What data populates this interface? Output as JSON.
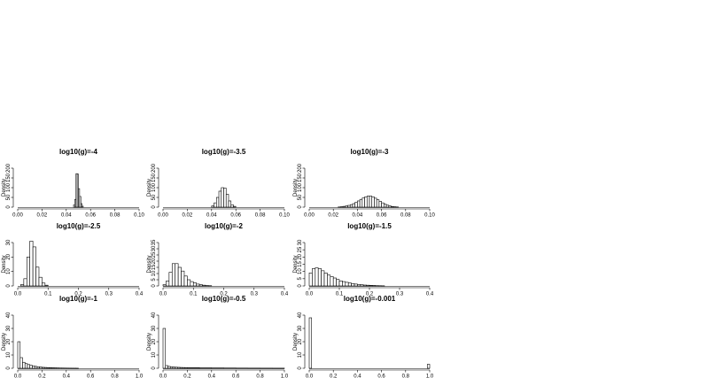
{
  "chart_data": [
    {
      "type": "bar",
      "title": "log10(g)=-4",
      "ylabel": "Density",
      "xlabel": "",
      "xlim": [
        0,
        0.1
      ],
      "ylim": [
        0,
        200
      ],
      "xticks": [
        "0.00",
        "0.02",
        "0.04",
        "0.06",
        "0.08",
        "0.10"
      ],
      "yticks": [
        "0",
        "50",
        "100",
        "150",
        "200"
      ],
      "bins": [
        [
          0.046,
          0.047,
          12
        ],
        [
          0.047,
          0.048,
          40
        ],
        [
          0.048,
          0.049,
          172
        ],
        [
          0.049,
          0.05,
          170
        ],
        [
          0.05,
          0.051,
          95
        ],
        [
          0.051,
          0.052,
          55
        ],
        [
          0.052,
          0.053,
          18
        ],
        [
          0.053,
          0.054,
          5
        ]
      ]
    },
    {
      "type": "bar",
      "title": "log10(g)=-3.5",
      "ylabel": "Density",
      "xlabel": "",
      "xlim": [
        0,
        0.1
      ],
      "ylim": [
        0,
        200
      ],
      "xticks": [
        "0.00",
        "0.02",
        "0.04",
        "0.06",
        "0.08",
        "0.10"
      ],
      "yticks": [
        "0",
        "50",
        "100",
        "150",
        "200"
      ],
      "bins": [
        [
          0.04,
          0.042,
          6
        ],
        [
          0.042,
          0.044,
          22
        ],
        [
          0.044,
          0.046,
          50
        ],
        [
          0.046,
          0.048,
          82
        ],
        [
          0.048,
          0.05,
          100
        ],
        [
          0.05,
          0.052,
          98
        ],
        [
          0.052,
          0.054,
          66
        ],
        [
          0.054,
          0.056,
          32
        ],
        [
          0.056,
          0.058,
          12
        ],
        [
          0.058,
          0.06,
          4
        ]
      ]
    },
    {
      "type": "bar",
      "title": "log10(g)=-3",
      "ylabel": "Density",
      "xlabel": "",
      "xlim": [
        0,
        0.1
      ],
      "ylim": [
        0,
        200
      ],
      "xticks": [
        "0.00",
        "0.02",
        "0.04",
        "0.06",
        "0.08",
        "0.10"
      ],
      "yticks": [
        "0",
        "50",
        "100",
        "150",
        "200"
      ],
      "bins": [
        [
          0.024,
          0.026,
          1
        ],
        [
          0.026,
          0.028,
          2
        ],
        [
          0.028,
          0.03,
          4
        ],
        [
          0.03,
          0.032,
          6
        ],
        [
          0.032,
          0.034,
          9
        ],
        [
          0.034,
          0.036,
          13
        ],
        [
          0.036,
          0.038,
          18
        ],
        [
          0.038,
          0.04,
          25
        ],
        [
          0.04,
          0.042,
          32
        ],
        [
          0.042,
          0.044,
          40
        ],
        [
          0.044,
          0.046,
          47
        ],
        [
          0.046,
          0.048,
          53
        ],
        [
          0.048,
          0.05,
          57
        ],
        [
          0.05,
          0.052,
          57
        ],
        [
          0.052,
          0.054,
          53
        ],
        [
          0.054,
          0.056,
          46
        ],
        [
          0.056,
          0.058,
          38
        ],
        [
          0.058,
          0.06,
          30
        ],
        [
          0.06,
          0.062,
          22
        ],
        [
          0.062,
          0.064,
          15
        ],
        [
          0.064,
          0.066,
          10
        ],
        [
          0.066,
          0.068,
          6
        ],
        [
          0.068,
          0.07,
          3
        ],
        [
          0.07,
          0.072,
          2
        ],
        [
          0.072,
          0.074,
          1
        ]
      ]
    },
    {
      "type": "bar",
      "title": "log10(g)=-2.5",
      "ylabel": "Density",
      "xlabel": "",
      "xlim": [
        0,
        0.4
      ],
      "ylim": [
        0,
        30
      ],
      "xticks": [
        "0.0",
        "0.1",
        "0.2",
        "0.3",
        "0.4"
      ],
      "yticks": [
        "0",
        "10",
        "20",
        "30"
      ],
      "bins": [
        [
          0.01,
          0.02,
          1
        ],
        [
          0.02,
          0.03,
          5
        ],
        [
          0.03,
          0.04,
          20
        ],
        [
          0.04,
          0.05,
          31
        ],
        [
          0.05,
          0.06,
          27
        ],
        [
          0.06,
          0.07,
          13
        ],
        [
          0.07,
          0.08,
          6
        ],
        [
          0.08,
          0.09,
          2
        ],
        [
          0.09,
          0.1,
          0.5
        ]
      ]
    },
    {
      "type": "bar",
      "title": "log10(g)=-2",
      "ylabel": "Density",
      "xlabel": "",
      "xlim": [
        0,
        0.4
      ],
      "ylim": [
        0,
        35
      ],
      "xticks": [
        "0.0",
        "0.1",
        "0.2",
        "0.3",
        "0.4"
      ],
      "yticks": [
        "0",
        "5",
        "10",
        "15",
        "20",
        "25",
        "30",
        "35"
      ],
      "bins": [
        [
          0.0,
          0.01,
          1
        ],
        [
          0.01,
          0.02,
          4
        ],
        [
          0.02,
          0.03,
          11
        ],
        [
          0.03,
          0.04,
          18
        ],
        [
          0.04,
          0.05,
          18
        ],
        [
          0.05,
          0.06,
          15
        ],
        [
          0.06,
          0.07,
          12
        ],
        [
          0.07,
          0.08,
          8
        ],
        [
          0.08,
          0.09,
          5
        ],
        [
          0.09,
          0.1,
          3.5
        ],
        [
          0.1,
          0.11,
          2.5
        ],
        [
          0.11,
          0.12,
          1.5
        ],
        [
          0.12,
          0.13,
          1
        ],
        [
          0.13,
          0.14,
          0.6
        ],
        [
          0.14,
          0.15,
          0.3
        ],
        [
          0.15,
          0.16,
          0.2
        ]
      ]
    },
    {
      "type": "bar",
      "title": "log10(g)=-1.5",
      "ylabel": "Density",
      "xlabel": "",
      "xlim": [
        0,
        0.4
      ],
      "ylim": [
        0,
        30
      ],
      "xticks": [
        "0.0",
        "0.1",
        "0.2",
        "0.3",
        "0.4"
      ],
      "yticks": [
        "0",
        "5",
        "10",
        "15",
        "20",
        "25",
        "30"
      ],
      "bins": [
        [
          0.0,
          0.01,
          9
        ],
        [
          0.01,
          0.02,
          12
        ],
        [
          0.02,
          0.03,
          12.5
        ],
        [
          0.03,
          0.04,
          12
        ],
        [
          0.04,
          0.05,
          10.5
        ],
        [
          0.05,
          0.06,
          9
        ],
        [
          0.06,
          0.07,
          7.5
        ],
        [
          0.07,
          0.08,
          6.5
        ],
        [
          0.08,
          0.09,
          5.5
        ],
        [
          0.09,
          0.1,
          4.5
        ],
        [
          0.1,
          0.11,
          3.5
        ],
        [
          0.11,
          0.12,
          3
        ],
        [
          0.12,
          0.13,
          2.5
        ],
        [
          0.13,
          0.14,
          2
        ],
        [
          0.14,
          0.15,
          1.6
        ],
        [
          0.15,
          0.16,
          1.3
        ],
        [
          0.16,
          0.17,
          1
        ],
        [
          0.17,
          0.18,
          0.8
        ],
        [
          0.18,
          0.19,
          0.6
        ],
        [
          0.19,
          0.2,
          0.5
        ],
        [
          0.2,
          0.21,
          0.4
        ],
        [
          0.21,
          0.22,
          0.3
        ],
        [
          0.22,
          0.23,
          0.2
        ],
        [
          0.23,
          0.24,
          0.15
        ],
        [
          0.24,
          0.25,
          0.1
        ]
      ]
    },
    {
      "type": "bar",
      "title": "log10(g)=-1",
      "ylabel": "Density",
      "xlabel": "",
      "xlim": [
        0,
        1
      ],
      "ylim": [
        0,
        40
      ],
      "xticks": [
        "0.0",
        "0.2",
        "0.4",
        "0.6",
        "0.8",
        "1.0"
      ],
      "yticks": [
        "0",
        "10",
        "20",
        "30",
        "40"
      ],
      "bins": [
        [
          0.0,
          0.02,
          20
        ],
        [
          0.02,
          0.04,
          8
        ],
        [
          0.04,
          0.06,
          4.5
        ],
        [
          0.06,
          0.08,
          3.5
        ],
        [
          0.08,
          0.1,
          2.8
        ],
        [
          0.1,
          0.12,
          2.2
        ],
        [
          0.12,
          0.14,
          1.8
        ],
        [
          0.14,
          0.16,
          1.4
        ],
        [
          0.16,
          0.18,
          1.1
        ],
        [
          0.18,
          0.2,
          0.9
        ],
        [
          0.2,
          0.22,
          0.7
        ],
        [
          0.22,
          0.24,
          0.6
        ],
        [
          0.24,
          0.26,
          0.5
        ],
        [
          0.26,
          0.28,
          0.4
        ],
        [
          0.28,
          0.3,
          0.35
        ],
        [
          0.3,
          0.32,
          0.3
        ],
        [
          0.32,
          0.34,
          0.25
        ],
        [
          0.34,
          0.36,
          0.2
        ],
        [
          0.36,
          0.38,
          0.18
        ],
        [
          0.38,
          0.4,
          0.15
        ],
        [
          0.4,
          0.42,
          0.12
        ],
        [
          0.42,
          0.44,
          0.1
        ],
        [
          0.44,
          0.46,
          0.08
        ],
        [
          0.46,
          0.48,
          0.07
        ],
        [
          0.48,
          0.5,
          0.05
        ]
      ]
    },
    {
      "type": "bar",
      "title": "log10(g)=-0.5",
      "ylabel": "Density",
      "xlabel": "",
      "xlim": [
        0,
        1
      ],
      "ylim": [
        0,
        40
      ],
      "xticks": [
        "0.0",
        "0.2",
        "0.4",
        "0.6",
        "0.8",
        "1.0"
      ],
      "yticks": [
        "0",
        "10",
        "20",
        "30",
        "40"
      ],
      "bins": [
        [
          0.0,
          0.02,
          30
        ],
        [
          0.02,
          0.04,
          2
        ],
        [
          0.04,
          0.06,
          1.4
        ],
        [
          0.06,
          0.08,
          1.1
        ],
        [
          0.08,
          0.1,
          0.9
        ],
        [
          0.1,
          0.12,
          0.8
        ],
        [
          0.12,
          0.14,
          0.7
        ],
        [
          0.14,
          0.16,
          0.6
        ],
        [
          0.16,
          0.18,
          0.55
        ],
        [
          0.18,
          0.2,
          0.5
        ],
        [
          0.2,
          0.3,
          0.4
        ],
        [
          0.3,
          0.4,
          0.3
        ],
        [
          0.4,
          0.5,
          0.25
        ],
        [
          0.5,
          0.6,
          0.2
        ],
        [
          0.6,
          0.7,
          0.15
        ],
        [
          0.7,
          0.8,
          0.12
        ],
        [
          0.8,
          0.9,
          0.1
        ],
        [
          0.9,
          1.0,
          0.08
        ]
      ]
    },
    {
      "type": "bar",
      "title": "log10(g)=-0.001",
      "ylabel": "Density",
      "xlabel": "",
      "xlim": [
        0,
        1
      ],
      "ylim": [
        0,
        40
      ],
      "xticks": [
        "0.0",
        "0.2",
        "0.4",
        "0.6",
        "0.8",
        "1.0"
      ],
      "yticks": [
        "0",
        "10",
        "20",
        "30",
        "40"
      ],
      "bins": [
        [
          0.0,
          0.02,
          38
        ],
        [
          0.98,
          1.0,
          3
        ]
      ]
    }
  ]
}
